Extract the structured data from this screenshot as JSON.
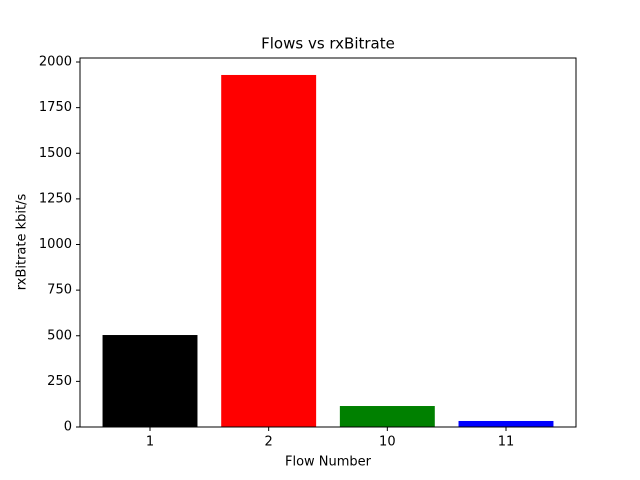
{
  "chart_data": {
    "type": "bar",
    "title": "Flows vs rxBitrate",
    "x_label": "Flow Number",
    "y_label": "rxBitrate kbit/s",
    "categories": [
      "1",
      "2",
      "10",
      "11"
    ],
    "values": [
      504,
      1929,
      115,
      33
    ],
    "colors": [
      "#000000",
      "#ff0000",
      "#008000",
      "#0000ff"
    ],
    "ylim": [
      0,
      2022
    ],
    "yticks": [
      0,
      250,
      500,
      750,
      1000,
      1250,
      1500,
      1750,
      2000
    ]
  }
}
